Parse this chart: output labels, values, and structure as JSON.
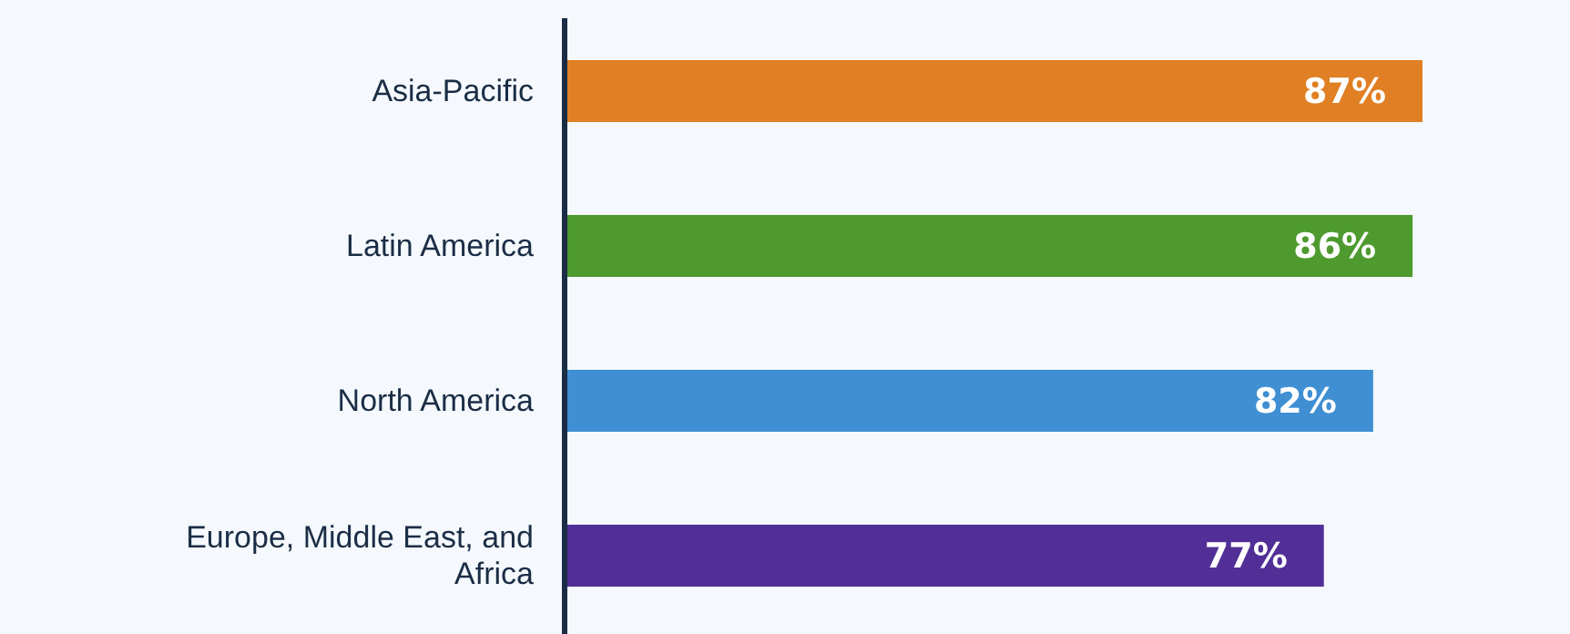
{
  "chart_data": {
    "type": "bar",
    "orientation": "horizontal",
    "categories": [
      "Asia-Pacific",
      "Latin America",
      "North America",
      "Europe, Middle East, and Africa"
    ],
    "values": [
      87,
      86,
      82,
      77
    ],
    "colors": [
      "#e07f24",
      "#4e9a2f",
      "#3f8fd2",
      "#512f97"
    ],
    "data_labels": true,
    "value_labels": [
      "87%",
      "86%",
      "82%",
      "77%"
    ],
    "tick_labels": "y"
  }
}
